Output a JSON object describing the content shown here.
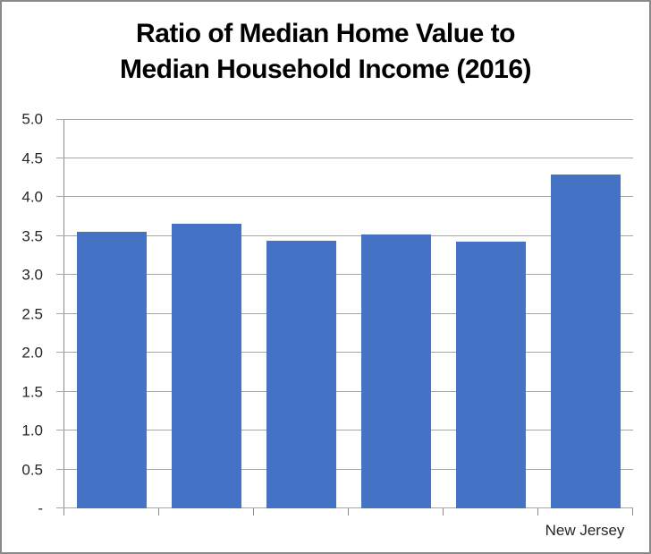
{
  "frame": {
    "background": "#FFFFFF",
    "border_color": "#8A8A8A"
  },
  "chart_data": {
    "type": "bar",
    "title": "Ratio of Median Home Value to Median Household Income (2016)",
    "title_lines": [
      "Ratio of Median Home Value to",
      "Median Household Income (2016)"
    ],
    "categories": [
      "",
      "",
      "",
      "",
      "",
      "New Jersey"
    ],
    "values": [
      3.55,
      3.66,
      3.44,
      3.52,
      3.42,
      4.29
    ],
    "xlabel": "",
    "ylabel": "",
    "ylim": [
      0,
      5
    ],
    "ytick_step": 0.5,
    "yticks": [
      {
        "value": 0,
        "label": "-"
      },
      {
        "value": 0.5,
        "label": "0.5"
      },
      {
        "value": 1.0,
        "label": "1.0"
      },
      {
        "value": 1.5,
        "label": "1.5"
      },
      {
        "value": 2.0,
        "label": "2.0"
      },
      {
        "value": 2.5,
        "label": "2.5"
      },
      {
        "value": 3.0,
        "label": "3.0"
      },
      {
        "value": 3.5,
        "label": "3.5"
      },
      {
        "value": 4.0,
        "label": "4.0"
      },
      {
        "value": 4.5,
        "label": "4.5"
      },
      {
        "value": 5.0,
        "label": "5.0"
      }
    ],
    "legend": "none",
    "grid": true,
    "bar_width_fraction": 0.736,
    "colors": {
      "bar": "#4472C4",
      "gridline": "#A6A6A6",
      "axis": "#8A8A8A",
      "tick_label": "#262626",
      "title": "#000000"
    }
  }
}
